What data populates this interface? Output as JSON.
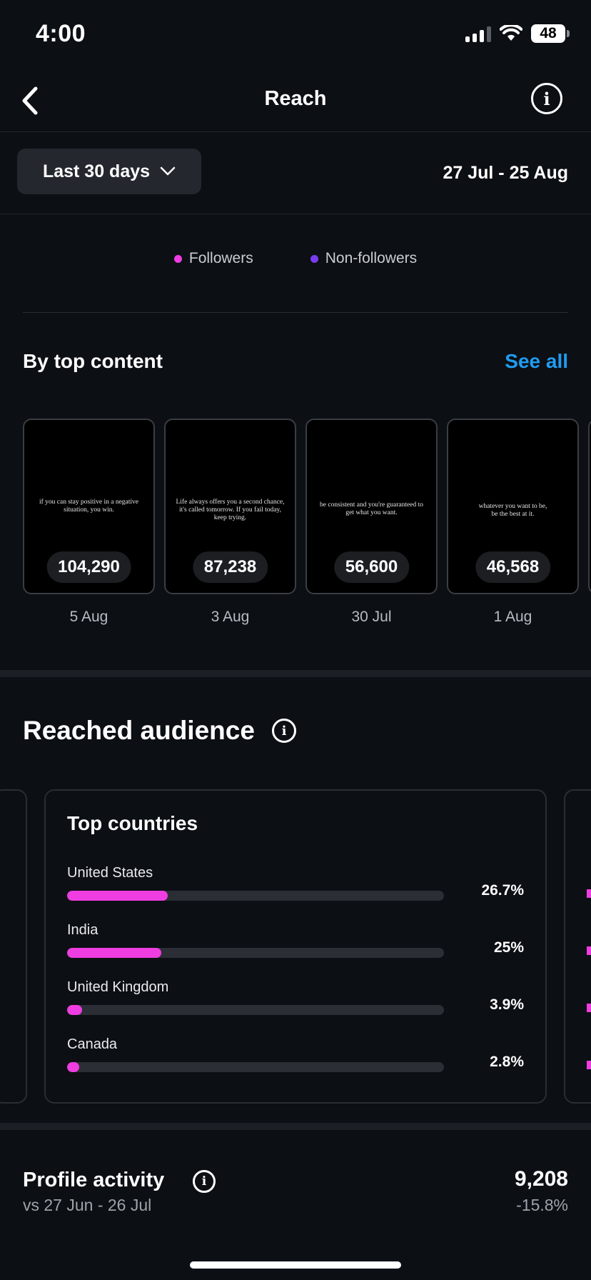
{
  "status_bar": {
    "time": "4:00",
    "battery": "48"
  },
  "header": {
    "title": "Reach"
  },
  "filter": {
    "label": "Last 30 days",
    "date_range": "27 Jul - 25 Aug"
  },
  "legend": [
    {
      "label": "Followers",
      "color": "#ee3de0"
    },
    {
      "label": "Non-followers",
      "color": "#7a3cf0"
    }
  ],
  "top_content": {
    "title": "By top content",
    "see_all": "See all",
    "items": [
      {
        "quote": "if you can stay positive in a negative situation, you win.",
        "count": "104,290",
        "date": "5 Aug"
      },
      {
        "quote": "Life always offers you a second chance, it's called tomorrow. If you fail today, keep trying.",
        "count": "87,238",
        "date": "3 Aug"
      },
      {
        "quote": "be consistent and you're guaranteed to get what you want.",
        "count": "56,600",
        "date": "30 Jul"
      },
      {
        "quote": "whatever you want to be, be the best at it.",
        "count": "46,568",
        "date": "1 Aug"
      }
    ]
  },
  "audience": {
    "title": "Reached audience",
    "top_countries": {
      "title": "Top countries",
      "items": [
        {
          "name": "United States",
          "pct": "26.7%",
          "value": 26.7
        },
        {
          "name": "India",
          "pct": "25%",
          "value": 25
        },
        {
          "name": "United Kingdom",
          "pct": "3.9%",
          "value": 3.9
        },
        {
          "name": "Canada",
          "pct": "2.8%",
          "value": 2.8
        }
      ]
    }
  },
  "profile_activity": {
    "title": "Profile activity",
    "comparison": "vs 27 Jun - 26 Jul",
    "value": "9,208",
    "change": "-15.8%"
  }
}
